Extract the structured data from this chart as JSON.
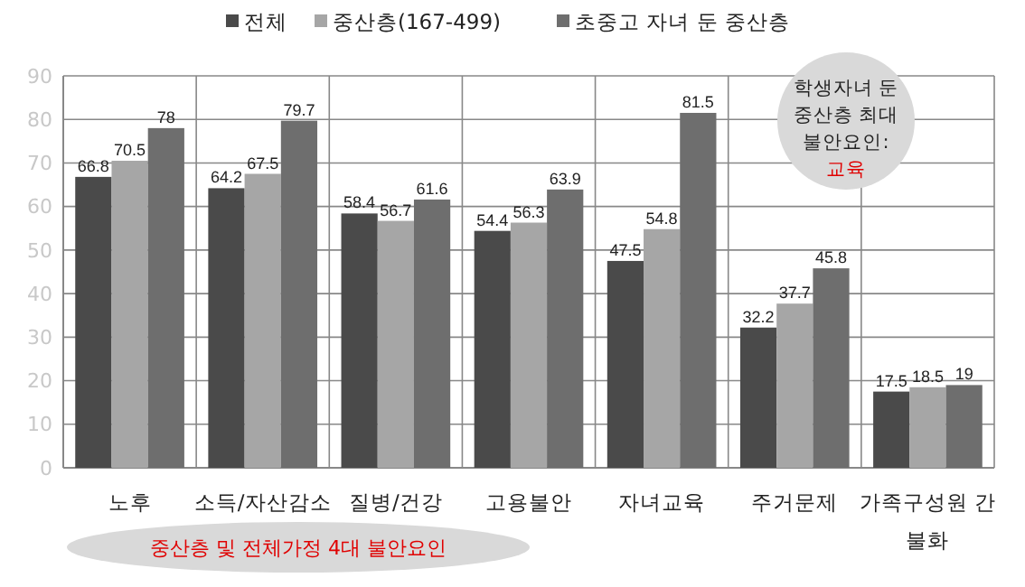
{
  "chart_data": {
    "type": "bar",
    "categories": [
      "노후",
      "소득/자산감소",
      "질병/건강",
      "고용불안",
      "자녀교육",
      "주거문제",
      "가족구성원 간 불화"
    ],
    "series": [
      {
        "name": "전체",
        "color": "#4a4a4a",
        "values": [
          66.8,
          64.2,
          58.4,
          54.4,
          47.5,
          32.2,
          17.5
        ]
      },
      {
        "name": "중산층(167-499)",
        "color": "#a6a6a6",
        "values": [
          70.5,
          67.5,
          56.7,
          56.3,
          54.8,
          37.7,
          18.5
        ]
      },
      {
        "name": "초중고 자녀 둔 중산층",
        "color": "#6e6e6e",
        "values": [
          78,
          79.7,
          61.6,
          63.9,
          81.5,
          45.8,
          19
        ]
      }
    ],
    "ylim": [
      0,
      90
    ],
    "yticks": [
      0,
      10,
      20,
      30,
      40,
      50,
      60,
      70,
      80,
      90
    ],
    "grid": true,
    "legend": "top",
    "data_labels": true,
    "annotations": [
      "학생자녀 둔 중산층 최대 불안요인:",
      "교육",
      "중산층 및 전체가정 4대 불안요인"
    ]
  }
}
